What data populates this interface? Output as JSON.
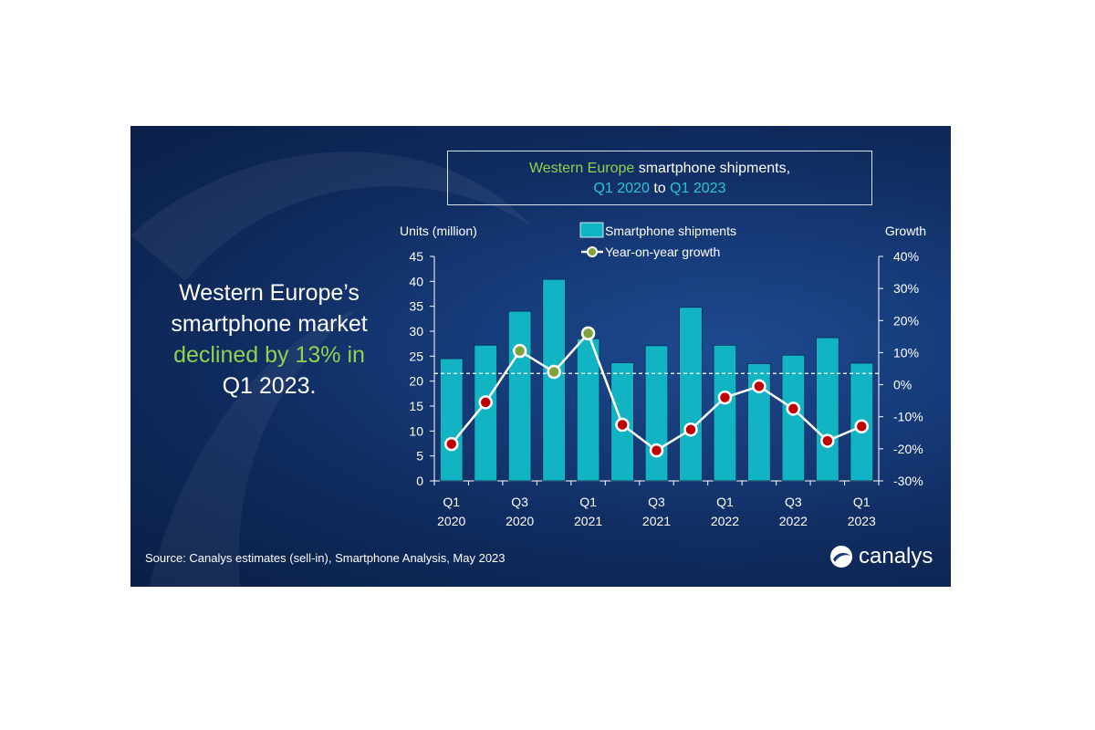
{
  "title": {
    "line1_green": "Western Europe",
    "line1_rest": " smartphone shipments,",
    "line2_start": "Q1 2020",
    "line2_mid": " to ",
    "line2_end": "Q1 2023"
  },
  "headline": {
    "line1": "Western Europe’s",
    "line2": "smartphone market",
    "line3": "declined by 13% in",
    "line4": "Q1 2023."
  },
  "source": "Source: Canalys estimates (sell-in), Smartphone Analysis, May 2023",
  "logo_text": "canalys",
  "colors": {
    "bar": "#12b3c2",
    "positive_marker": "#7fa23a",
    "negative_marker": "#c00000",
    "line": "#ffffff",
    "green_text": "#92d050",
    "cyan_text": "#2cc4d6"
  },
  "chart_data": {
    "type": "bar",
    "left_axis_label": "Units (million)",
    "right_axis_label": "Growth",
    "ylim_left": [
      0,
      45
    ],
    "ylim_right": [
      -30,
      40
    ],
    "left_ticks": [
      "0",
      "5",
      "10",
      "15",
      "20",
      "25",
      "30",
      "35",
      "40",
      "45"
    ],
    "right_ticks": [
      "-30%",
      "-20%",
      "-10%",
      "0%",
      "10%",
      "20%",
      "30%",
      "40%"
    ],
    "x_tick_labels": [
      {
        "q": "Q1",
        "y": "2020"
      },
      {
        "q": "Q3",
        "y": "2020"
      },
      {
        "q": "Q1",
        "y": "2021"
      },
      {
        "q": "Q3",
        "y": "2021"
      },
      {
        "q": "Q1",
        "y": "2022"
      },
      {
        "q": "Q3",
        "y": "2022"
      },
      {
        "q": "Q1",
        "y": "2023"
      }
    ],
    "categories": [
      "Q1 2020",
      "Q2 2020",
      "Q3 2020",
      "Q4 2020",
      "Q1 2021",
      "Q2 2021",
      "Q3 2021",
      "Q4 2021",
      "Q1 2022",
      "Q2 2022",
      "Q3 2022",
      "Q4 2022",
      "Q1 2023"
    ],
    "series": [
      {
        "name": "Smartphone shipments",
        "axis": "left",
        "type": "bar",
        "values": [
          24.5,
          27.2,
          34.0,
          40.4,
          28.5,
          23.7,
          27.1,
          34.8,
          27.2,
          23.5,
          25.2,
          28.7,
          23.6
        ]
      },
      {
        "name": "Year-on-year growth",
        "axis": "right",
        "type": "line",
        "values": [
          -18.5,
          -5.5,
          10.5,
          4.0,
          16.0,
          -12.5,
          -20.5,
          -14.0,
          -4.0,
          -0.5,
          -7.5,
          -17.5,
          -13.0
        ]
      }
    ],
    "reference_line": {
      "axis": "right",
      "value": 3.5,
      "style": "dashed"
    },
    "legend_position": "top-center"
  }
}
